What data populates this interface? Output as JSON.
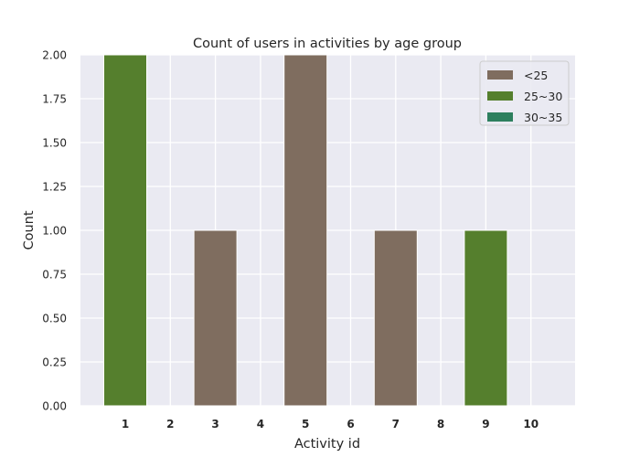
{
  "chart_data": {
    "type": "bar",
    "stacked": true,
    "title": "Count of users in activities by age group",
    "xlabel": "Activity id",
    "ylabel": "Count",
    "categories": [
      "1",
      "2",
      "3",
      "4",
      "5",
      "6",
      "7",
      "8",
      "9",
      "10"
    ],
    "series": [
      {
        "name": "<25",
        "color": "#7f6d5f",
        "values": [
          0,
          0,
          1,
          0,
          2,
          0,
          1,
          0,
          0,
          0
        ]
      },
      {
        "name": "25~30",
        "color": "#557f2d",
        "values": [
          2,
          0,
          0,
          0,
          0,
          0,
          0,
          0,
          1,
          0
        ]
      },
      {
        "name": "30~35",
        "color": "#2d7f5e",
        "values": [
          0,
          0,
          0,
          0,
          0,
          0,
          0,
          0,
          0,
          0
        ]
      }
    ],
    "ylim": [
      0,
      2
    ],
    "yticks": [
      "0.00",
      "0.25",
      "0.50",
      "0.75",
      "1.00",
      "1.25",
      "1.50",
      "1.75",
      "2.00"
    ],
    "grid": true,
    "legend_position": "top-right",
    "background_color": "#eaeaf2"
  }
}
